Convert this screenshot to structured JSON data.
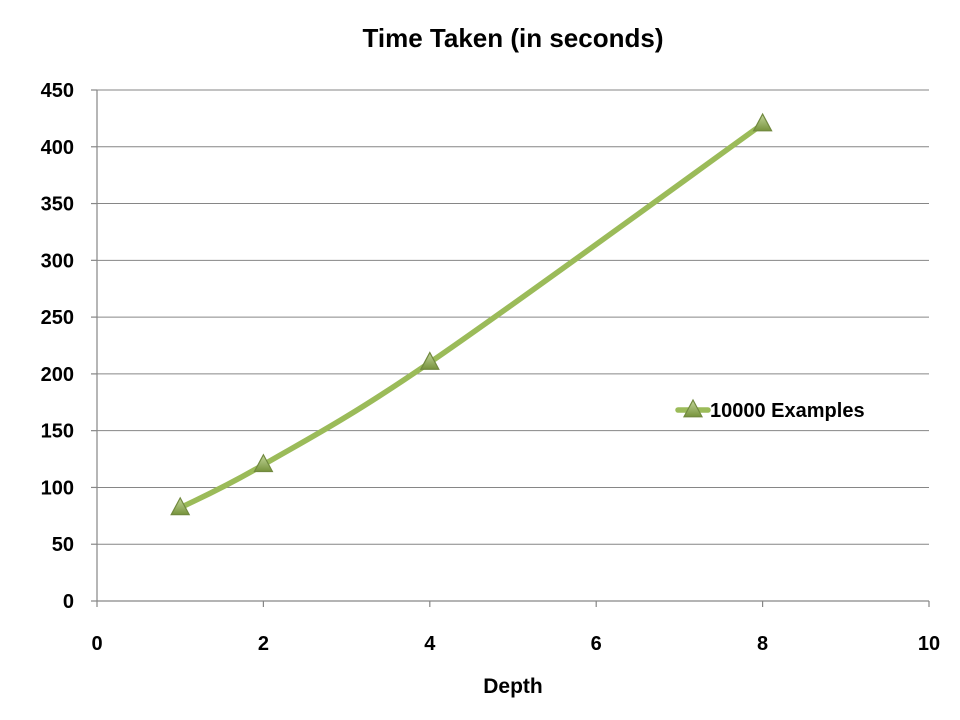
{
  "chart_data": {
    "type": "line",
    "title": "Time Taken (in seconds)",
    "xlabel": "Depth",
    "ylabel": "",
    "xlim": [
      0,
      10
    ],
    "ylim": [
      0,
      450
    ],
    "xticks": [
      0,
      2,
      4,
      6,
      8,
      10
    ],
    "yticks": [
      0,
      50,
      100,
      150,
      200,
      250,
      300,
      350,
      400,
      450
    ],
    "grid": "horizontal",
    "legend_position": "right",
    "series": [
      {
        "name": "10000 Examples",
        "color": "#9BBB59",
        "marker": "triangle",
        "x": [
          1,
          2,
          4,
          8
        ],
        "y": [
          82,
          120,
          210,
          420
        ]
      }
    ]
  }
}
